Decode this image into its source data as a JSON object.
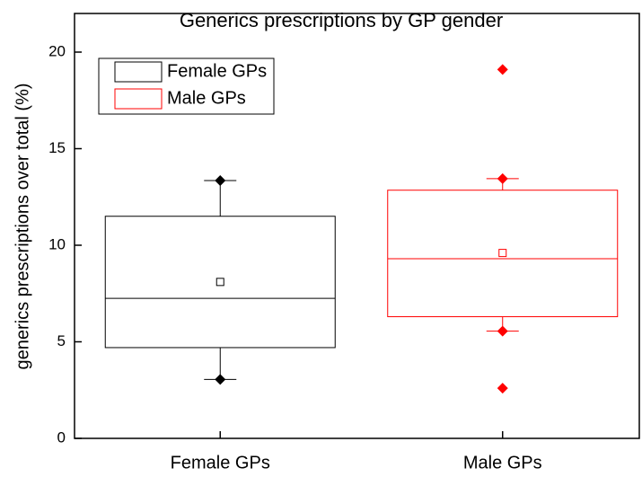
{
  "chart_data": {
    "type": "box",
    "title": "Generics prescriptions by GP gender",
    "y_label": "generics prescriptions over total (%)",
    "categories": [
      "Female GPs",
      "Male GPs"
    ],
    "ylim": [
      0,
      22
    ],
    "yticks": [
      0,
      5,
      10,
      15,
      20
    ],
    "legend": "top-left",
    "series": [
      {
        "name": "Female GPs",
        "color": "#000000",
        "q1": 4.7,
        "median": 7.25,
        "q3": 11.5,
        "mean": 8.1,
        "whisker_low": 3.05,
        "whisker_high": 13.35,
        "outliers": []
      },
      {
        "name": "Male GPs",
        "color": "#ff0000",
        "q1": 6.3,
        "median": 9.3,
        "q3": 12.85,
        "mean": 9.6,
        "whisker_low": 5.55,
        "whisker_high": 13.45,
        "outliers": [
          19.1,
          2.6
        ]
      }
    ]
  }
}
